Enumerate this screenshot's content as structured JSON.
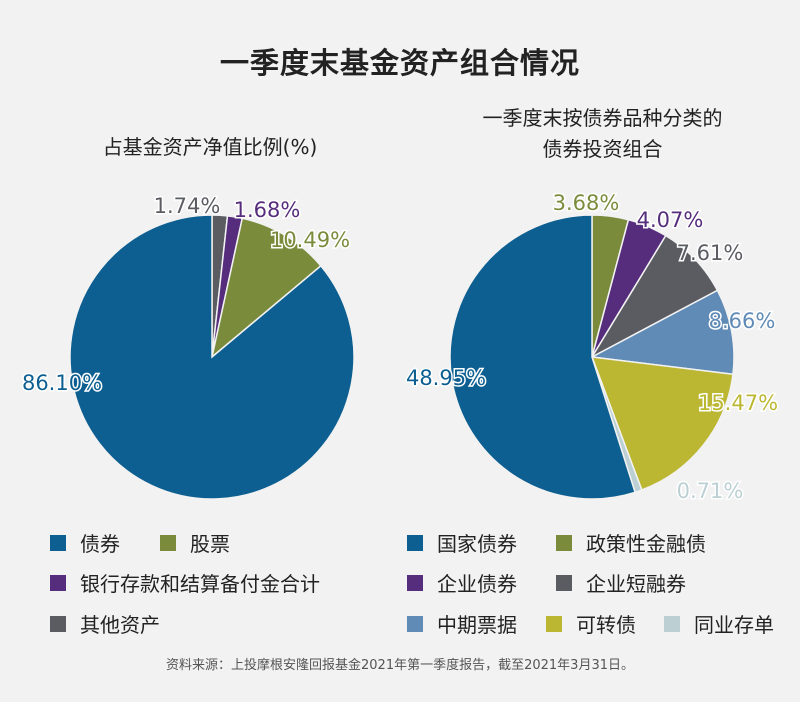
{
  "title": "一季度末基金资产组合情况",
  "source": "资料来源：上投摩根安隆回报基金2021年第一季度报告，截至2021年3月31日。",
  "colors": {
    "navy": "#0d5f91",
    "olive": "#7a8c3c",
    "purple": "#562d7c",
    "gray": "#5a5c62",
    "lightblue": "#5f8bb6",
    "yellowgreen": "#bcb733",
    "paleblue": "#bcd0d4"
  },
  "chart_data": [
    {
      "type": "pie",
      "title": "占基金资产净值比例(%)",
      "slices": [
        {
          "name": "其他资产",
          "value": 1.74,
          "label": "1.74%",
          "color": "#5a5c62"
        },
        {
          "name": "银行存款和结算备付金合计",
          "value": 1.68,
          "label": "1.68%",
          "color": "#562d7c"
        },
        {
          "name": "股票",
          "value": 10.49,
          "label": "10.49%",
          "color": "#7a8c3c"
        },
        {
          "name": "债券",
          "value": 86.1,
          "label": "86.10%",
          "color": "#0d5f91"
        }
      ],
      "legend": [
        {
          "name": "债券",
          "color": "#0d5f91"
        },
        {
          "name": "股票",
          "color": "#7a8c3c"
        },
        {
          "name": "银行存款和结算备付金合计",
          "color": "#562d7c"
        },
        {
          "name": "其他资产",
          "color": "#5a5c62"
        }
      ]
    },
    {
      "type": "pie",
      "title": "一季度末按债券品种分类的 债券投资组合",
      "title_lines": [
        "一季度末按债券品种分类的",
        "债券投资组合"
      ],
      "slices": [
        {
          "name": "政策性金融债",
          "value": 3.68,
          "label": "3.68%",
          "color": "#7a8c3c"
        },
        {
          "name": "企业债券",
          "value": 4.07,
          "label": "4.07%",
          "color": "#562d7c"
        },
        {
          "name": "企业短融券",
          "value": 7.61,
          "label": "7.61%",
          "color": "#5a5c62"
        },
        {
          "name": "中期票据",
          "value": 8.66,
          "label": "8.66%",
          "color": "#5f8bb6"
        },
        {
          "name": "可转债",
          "value": 15.47,
          "label": "15.47%",
          "color": "#bcb733"
        },
        {
          "name": "同业存单",
          "value": 0.71,
          "label": "0.71%",
          "color": "#bcd0d4"
        },
        {
          "name": "国家债券",
          "value": 48.95,
          "label": "48.95%",
          "color": "#0d5f91"
        }
      ],
      "legend": [
        {
          "name": "国家债券",
          "color": "#0d5f91"
        },
        {
          "name": "政策性金融债",
          "color": "#7a8c3c"
        },
        {
          "name": "企业债券",
          "color": "#562d7c"
        },
        {
          "name": "企业短融券",
          "color": "#5a5c62"
        },
        {
          "name": "中期票据",
          "color": "#5f8bb6"
        },
        {
          "name": "可转债",
          "color": "#bcb733"
        },
        {
          "name": "同业存单",
          "color": "#bcd0d4"
        }
      ]
    }
  ]
}
